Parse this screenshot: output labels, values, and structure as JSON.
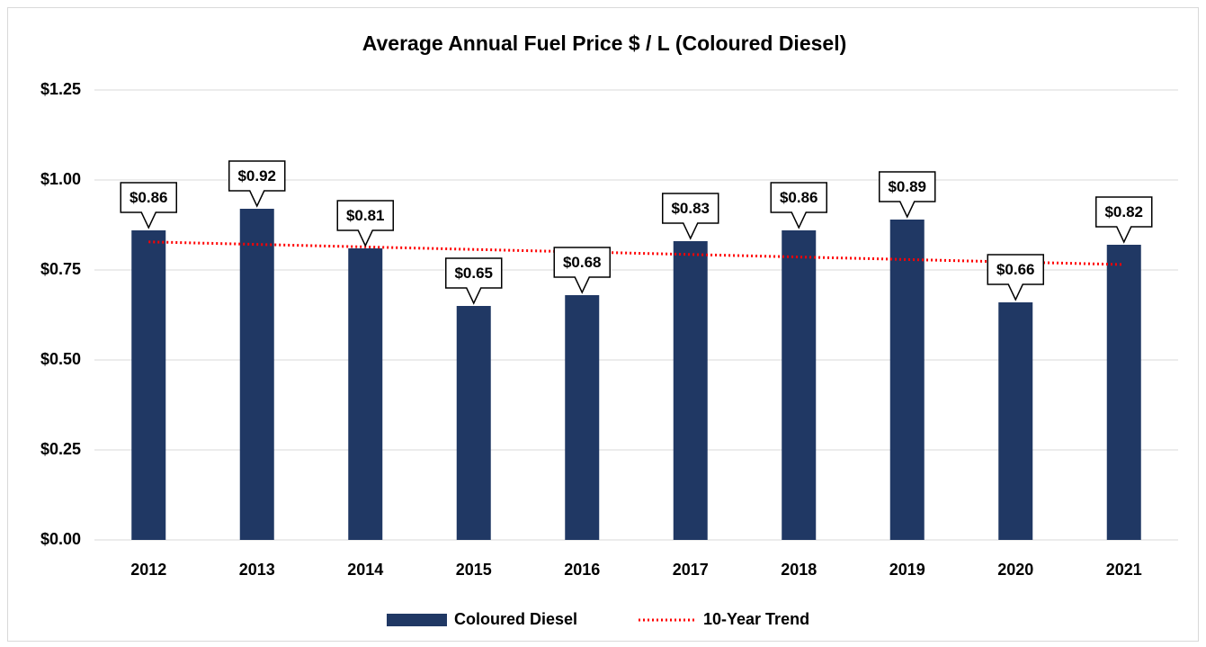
{
  "chart_data": {
    "type": "bar",
    "title": "Average Annual Fuel Price $ / L (Coloured Diesel)",
    "categories": [
      "2012",
      "2013",
      "2014",
      "2015",
      "2016",
      "2017",
      "2018",
      "2019",
      "2020",
      "2021"
    ],
    "series": [
      {
        "name": "Coloured Diesel",
        "type": "bar",
        "color": "#203864",
        "values": [
          0.86,
          0.92,
          0.81,
          0.65,
          0.68,
          0.83,
          0.86,
          0.89,
          0.66,
          0.82
        ],
        "value_labels": [
          "$0.86",
          "$0.92",
          "$0.81",
          "$0.65",
          "$0.68",
          "$0.83",
          "$0.86",
          "$0.89",
          "$0.66",
          "$0.82"
        ]
      },
      {
        "name": "10-Year Trend",
        "type": "line",
        "color": "#ff0000",
        "dash": "dotted",
        "values": [
          0.828,
          0.821,
          0.814,
          0.807,
          0.8,
          0.793,
          0.786,
          0.779,
          0.772,
          0.765
        ]
      }
    ],
    "ylim": [
      0,
      1.25
    ],
    "yticks": [
      {
        "value": 0,
        "label": "$0.00"
      },
      {
        "value": 0.25,
        "label": "$0.25"
      },
      {
        "value": 0.5,
        "label": "$0.50"
      },
      {
        "value": 0.75,
        "label": "$0.75"
      },
      {
        "value": 1,
        "label": "$1.00"
      },
      {
        "value": 1.25,
        "label": "$1.25"
      }
    ],
    "grid": true,
    "legend": "bottom"
  }
}
